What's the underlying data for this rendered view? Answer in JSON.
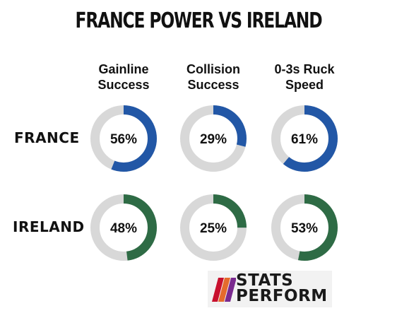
{
  "title": "FRANCE POWER VS IRELAND",
  "columns": [
    "Gainline Success",
    "Collision Success",
    "0-3s Ruck Speed"
  ],
  "rows": [
    "FRANCE",
    "IRELAND"
  ],
  "logo": {
    "line1": "STATS",
    "line2": "PERFORM",
    "colors": [
      "#c8102e",
      "#e56a2c",
      "#7a2a8f"
    ]
  },
  "chart_data": {
    "type": "donut",
    "title": "FRANCE POWER VS IRELAND",
    "categories": [
      "Gainline Success",
      "Collision Success",
      "0-3s Ruck Speed"
    ],
    "series": [
      {
        "name": "FRANCE",
        "values": [
          56,
          29,
          61
        ],
        "labels": [
          "56%",
          "29%",
          "61%"
        ],
        "color": "#2257a6"
      },
      {
        "name": "IRELAND",
        "values": [
          48,
          25,
          53
        ],
        "labels": [
          "48%",
          "25%",
          "53%"
        ],
        "color": "#2e6b45"
      }
    ],
    "max": 100,
    "track_color": "#d8d8d8"
  }
}
